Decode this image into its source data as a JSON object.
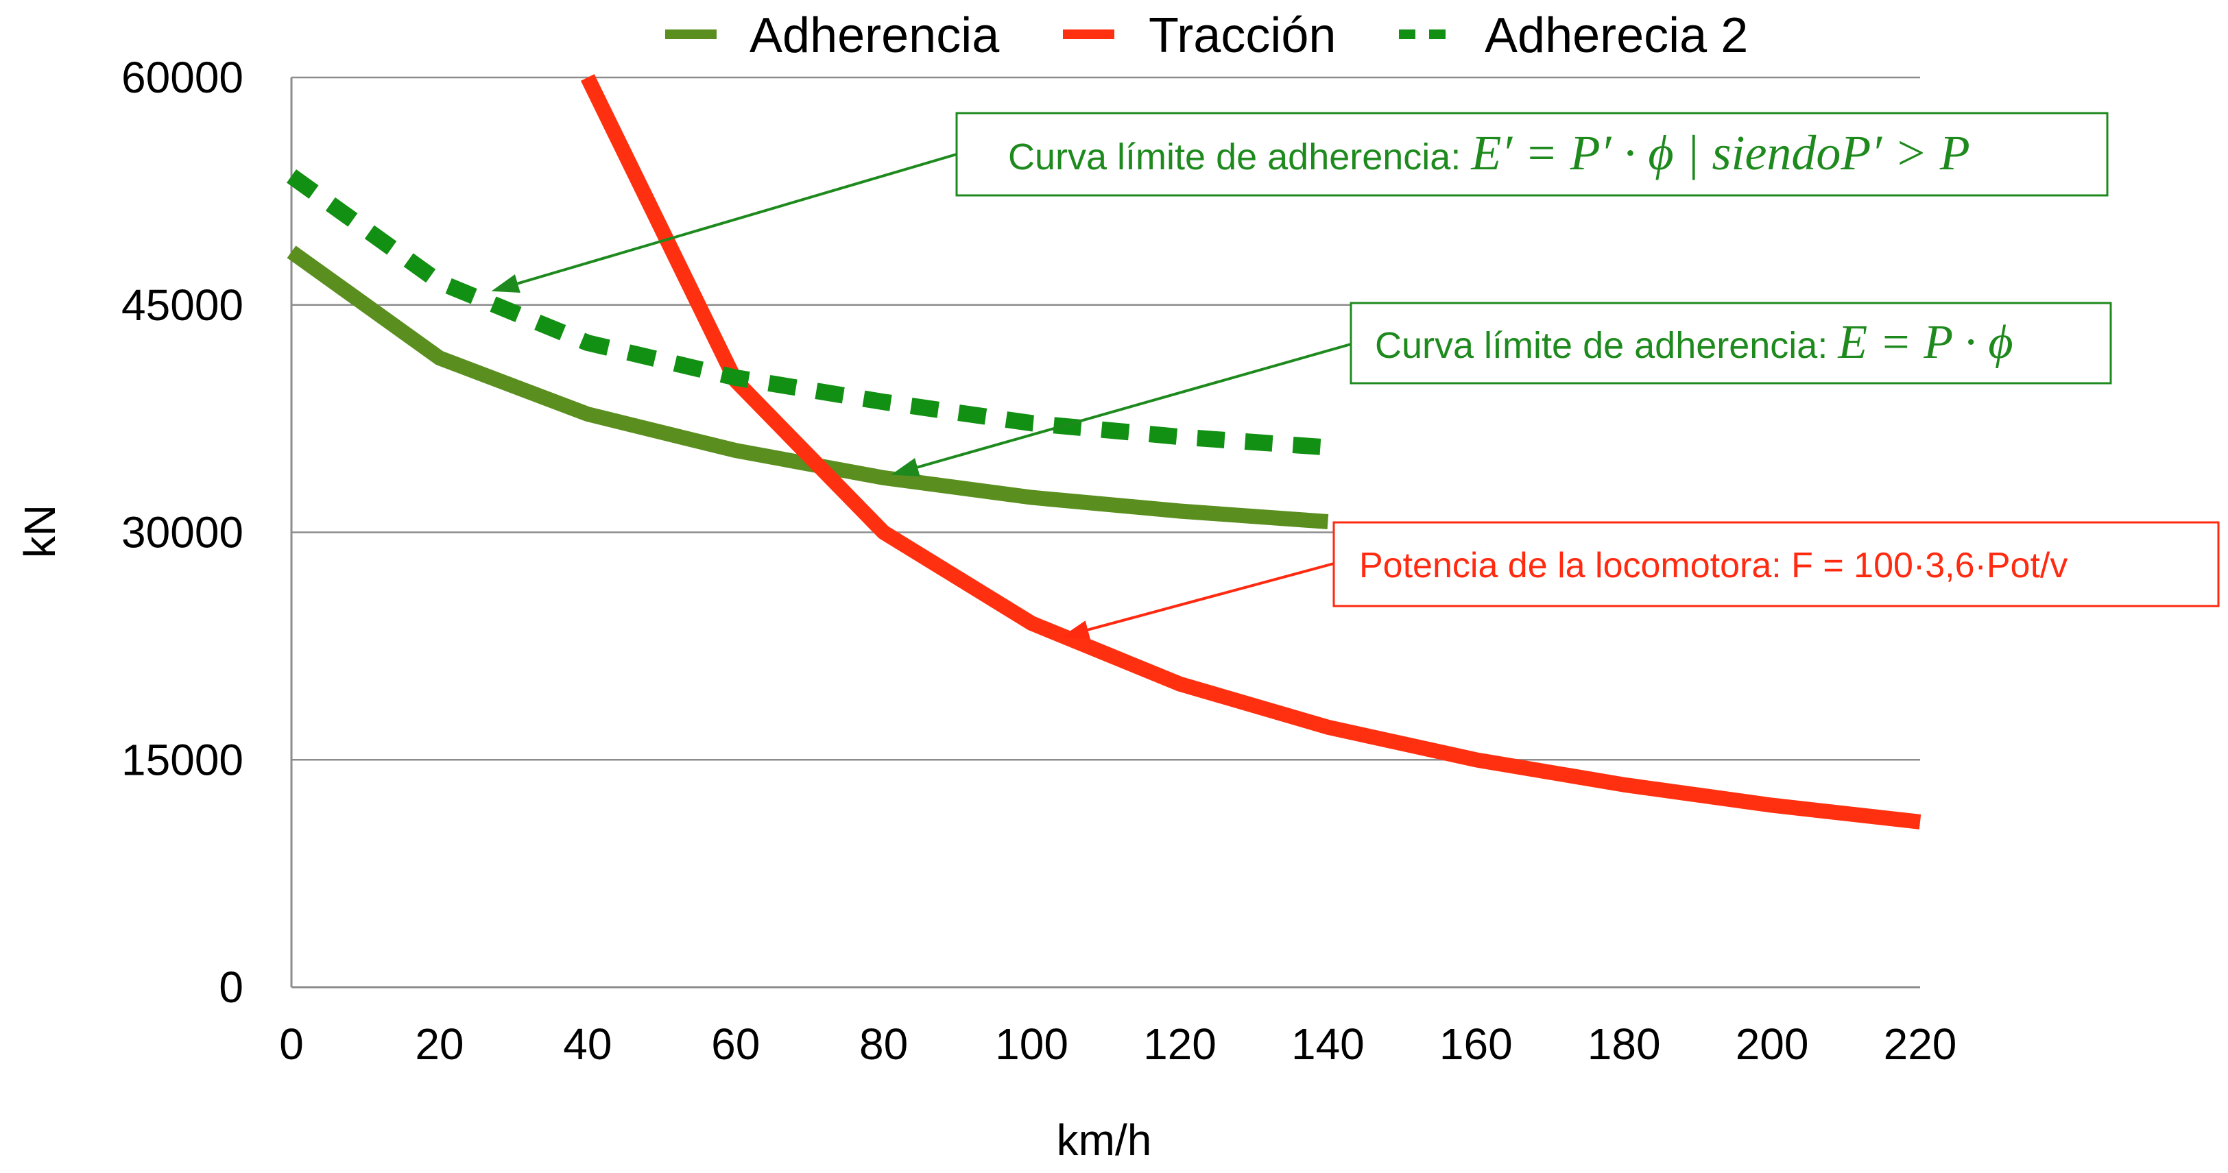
{
  "chart_data": {
    "type": "line",
    "title": "",
    "xlabel": "km/h",
    "ylabel": "kN",
    "xlim": [
      0,
      220
    ],
    "ylim": [
      0,
      60000
    ],
    "x_ticks": [
      0,
      20,
      40,
      60,
      80,
      100,
      120,
      140,
      160,
      180,
      200,
      220
    ],
    "x_tick_labels": [
      "0",
      "20",
      "40",
      "60",
      "80",
      "100",
      "120",
      "140",
      "160",
      "180",
      "200",
      "220"
    ],
    "y_ticks": [
      0,
      15000,
      30000,
      45000,
      60000
    ],
    "y_tick_labels": [
      "0",
      "15000",
      "30000",
      "45000",
      "60000"
    ],
    "grid": "horizontal",
    "legend_position": "top",
    "series": [
      {
        "name": "Adherencia",
        "style": "solid",
        "color": "#5a8f1f",
        "points": [
          [
            0,
            48500
          ],
          [
            20,
            41500
          ],
          [
            40,
            37800
          ],
          [
            60,
            35400
          ],
          [
            80,
            33600
          ],
          [
            100,
            32300
          ],
          [
            120,
            31400
          ],
          [
            140,
            30700
          ]
        ]
      },
      {
        "name": "Tracción",
        "style": "solid",
        "color": "#ff3010",
        "points": [
          [
            40,
            60000
          ],
          [
            60,
            40000
          ],
          [
            80,
            30000
          ],
          [
            100,
            24000
          ],
          [
            120,
            20000
          ],
          [
            140,
            17150
          ],
          [
            160,
            15000
          ],
          [
            180,
            13350
          ],
          [
            200,
            12000
          ],
          [
            220,
            10900
          ]
        ]
      },
      {
        "name": "Adherecia 2",
        "style": "dashed",
        "color": "#129013",
        "points": [
          [
            0,
            53500
          ],
          [
            20,
            46500
          ],
          [
            40,
            42500
          ],
          [
            60,
            40200
          ],
          [
            80,
            38600
          ],
          [
            100,
            37200
          ],
          [
            120,
            36300
          ],
          [
            140,
            35600
          ]
        ]
      }
    ],
    "annotations": [
      {
        "id": "adherencia-2",
        "text_prefix": "Curva límite de adherencia: ",
        "formula": "E′ = P′ · ϕ | siendoP′ > P",
        "color": "#1e8a1e",
        "target": [
          27,
          45900
        ]
      },
      {
        "id": "adherencia",
        "text_prefix": "Curva límite de adherencia: ",
        "formula": "E = P · ϕ",
        "color": "#1e8a1e",
        "target": [
          81,
          33800
        ]
      },
      {
        "id": "potencia",
        "text_prefix": "Potencia de la locomotora: F = 100·3,6·Pot/v",
        "formula": "",
        "color": "#ff2a10",
        "target": [
          104,
          23100
        ]
      }
    ]
  }
}
